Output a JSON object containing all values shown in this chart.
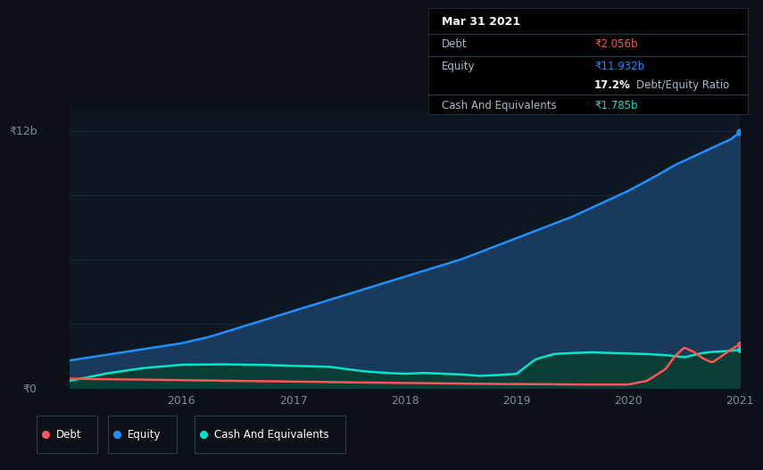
{
  "bg_color": "#0c1117",
  "plot_bg": "#0e1822",
  "grid_color": "#1c2b3a",
  "equity_color": "#1e90ff",
  "equity_fill": "#1a3a5c",
  "debt_color": "#ff5555",
  "cash_color": "#00e5cc",
  "cash_fill": "#0a3d35",
  "ylim_max": 13.0,
  "ylabel_top": "₹12b",
  "ylabel_bot": "₹0",
  "x_tick_labels": [
    "2016",
    "2017",
    "2018",
    "2019",
    "2020",
    "2021"
  ],
  "tooltip_bg": "#000000",
  "tooltip_title": "Mar 31 2021",
  "tooltip_debt_label": "Debt",
  "tooltip_debt_value": "₹2.056b",
  "tooltip_debt_color": "#ff5555",
  "tooltip_equity_label": "Equity",
  "tooltip_equity_value": "₹11.932b",
  "tooltip_equity_color": "#1e90ff",
  "tooltip_ratio": "17.2%",
  "tooltip_ratio_suffix": " Debt/Equity Ratio",
  "tooltip_cash_label": "Cash And Equivalents",
  "tooltip_cash_value": "₹1.785b",
  "tooltip_cash_color": "#00e5cc",
  "divider_color": "#2a3a4a",
  "label_color": "#aabbcc",
  "text_color": "#ffffff",
  "legend_border_color": "#2a3a4a",
  "legend_items": [
    {
      "label": "Debt",
      "color": "#ff5555"
    },
    {
      "label": "Equity",
      "color": "#1e90ff"
    },
    {
      "label": "Cash And Equivalents",
      "color": "#00e5cc"
    }
  ],
  "equity_t": [
    0,
    3,
    6,
    9,
    12,
    15,
    18,
    21,
    24,
    27,
    30,
    33,
    36,
    39,
    42,
    45,
    48,
    51,
    54,
    57,
    60,
    63,
    65,
    67,
    69,
    71,
    72
  ],
  "equity_v": [
    1.3,
    1.5,
    1.7,
    1.9,
    2.1,
    2.4,
    2.8,
    3.2,
    3.6,
    4.0,
    4.4,
    4.8,
    5.2,
    5.6,
    6.0,
    6.5,
    7.0,
    7.5,
    8.0,
    8.6,
    9.2,
    9.9,
    10.4,
    10.8,
    11.2,
    11.6,
    11.932
  ],
  "debt_t": [
    0,
    6,
    12,
    18,
    24,
    30,
    36,
    42,
    48,
    54,
    57,
    60,
    62,
    64,
    65,
    66,
    67,
    68,
    69,
    70,
    71,
    72
  ],
  "debt_v": [
    0.45,
    0.42,
    0.38,
    0.35,
    0.32,
    0.28,
    0.25,
    0.22,
    0.2,
    0.18,
    0.18,
    0.18,
    0.35,
    0.9,
    1.5,
    1.9,
    1.7,
    1.4,
    1.2,
    1.5,
    1.8,
    2.056
  ],
  "cash_t": [
    0,
    4,
    8,
    12,
    16,
    20,
    24,
    28,
    30,
    32,
    34,
    36,
    38,
    40,
    42,
    44,
    46,
    48,
    50,
    52,
    54,
    56,
    58,
    60,
    62,
    63,
    64,
    65,
    66,
    67,
    68,
    69,
    70,
    71,
    72
  ],
  "cash_v": [
    0.35,
    0.7,
    0.95,
    1.1,
    1.12,
    1.1,
    1.05,
    1.0,
    0.88,
    0.78,
    0.72,
    0.68,
    0.72,
    0.68,
    0.65,
    0.58,
    0.62,
    0.68,
    1.35,
    1.6,
    1.65,
    1.68,
    1.65,
    1.62,
    1.6,
    1.57,
    1.55,
    1.5,
    1.45,
    1.55,
    1.65,
    1.7,
    1.72,
    1.75,
    1.785
  ]
}
